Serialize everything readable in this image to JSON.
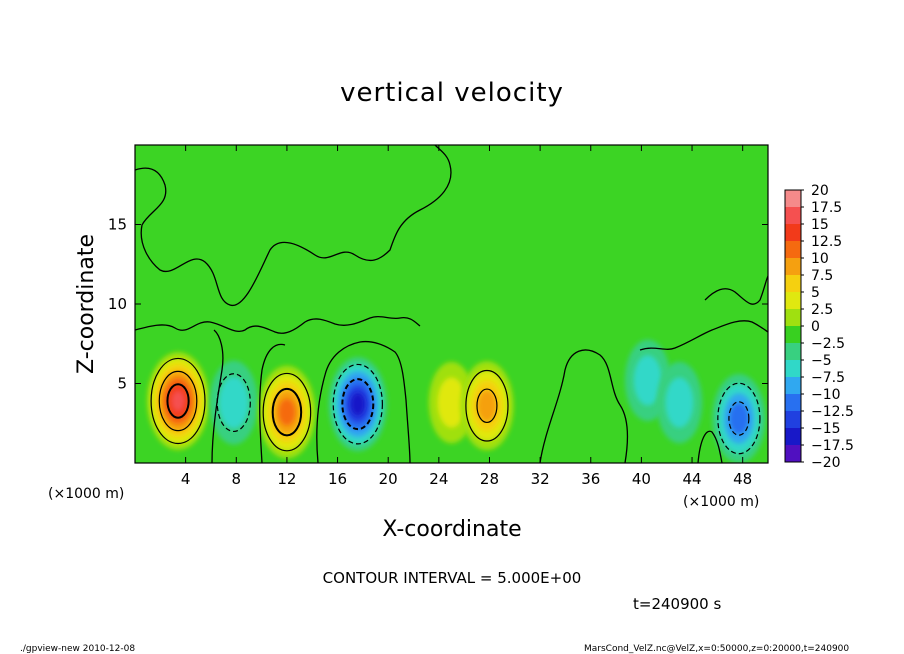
{
  "chart_data": {
    "type": "heatmap",
    "title": "vertical velocity",
    "xlabel": "X-coordinate",
    "ylabel": "Z-coordinate",
    "x_unit_label_left": "(×1000 m)",
    "x_unit_label_right": "(×1000 m)",
    "xlim": [
      0,
      50
    ],
    "ylim": [
      0,
      20
    ],
    "x_ticks": [
      4,
      8,
      12,
      16,
      20,
      24,
      28,
      32,
      36,
      40,
      44,
      48
    ],
    "y_ticks": [
      5,
      10,
      15
    ],
    "colorbar": {
      "labels": [
        "20",
        "17.5",
        "15",
        "12.5",
        "10",
        "7.5",
        "5",
        "2.5",
        "0",
        "−2.5",
        "−5",
        "−7.5",
        "−10",
        "−12.5",
        "−15",
        "−17.5",
        "−20"
      ],
      "colors": [
        "#f58a8a",
        "#f55050",
        "#f23a1a",
        "#f56a10",
        "#f5a010",
        "#f5d010",
        "#e0e810",
        "#a0e010",
        "#38d020",
        "#38d080",
        "#30d8c8",
        "#30a8f0",
        "#2870f0",
        "#2040e0",
        "#1818c8",
        "#5010c0",
        "#7018b0"
      ]
    },
    "background_value": 0,
    "features": [
      {
        "x": 3.4,
        "z": 3.9,
        "value": 17,
        "sign": "positive"
      },
      {
        "x": 7.8,
        "z": 3.8,
        "value": -6,
        "sign": "negative"
      },
      {
        "x": 12.0,
        "z": 3.2,
        "value": 13,
        "sign": "positive"
      },
      {
        "x": 17.6,
        "z": 3.7,
        "value": -14,
        "sign": "negative"
      },
      {
        "x": 25.0,
        "z": 3.8,
        "value": 4,
        "sign": "positive"
      },
      {
        "x": 27.8,
        "z": 3.6,
        "value": 10,
        "sign": "positive"
      },
      {
        "x": 40.5,
        "z": 5.2,
        "value": -4,
        "sign": "negative"
      },
      {
        "x": 43.0,
        "z": 3.8,
        "value": -4,
        "sign": "negative"
      },
      {
        "x": 47.7,
        "z": 2.8,
        "value": -10,
        "sign": "negative"
      }
    ]
  },
  "annotations": {
    "contour_interval": "CONTOUR INTERVAL = 5.000E+00",
    "time": "t=240900 s",
    "footer_left": "./gpview-new  2010-12-08",
    "footer_right": "MarsCond_VelZ.nc@VelZ,x=0:50000,z=0:20000,t=240900"
  }
}
